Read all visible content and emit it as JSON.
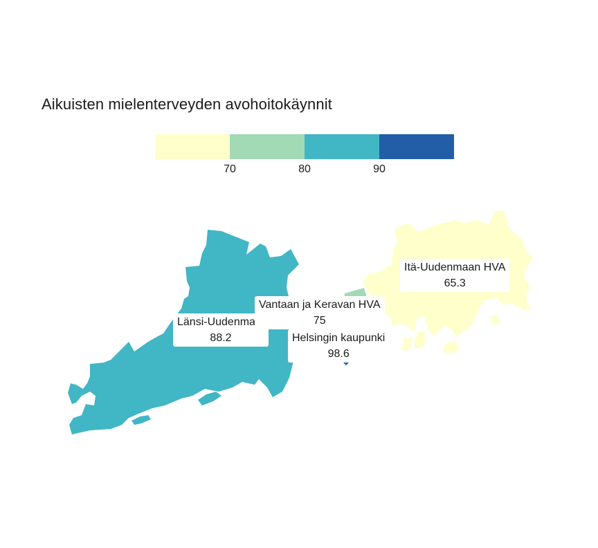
{
  "title": "Aikuisten mielenterveyden avohoitokäynnit",
  "legend": {
    "colors": [
      "#ffffcc",
      "#a1dab4",
      "#41b6c4",
      "#225ea8"
    ],
    "ticks": [
      "70",
      "80",
      "90"
    ]
  },
  "regions": [
    {
      "name": "Länsi-Uudenmaan HVA",
      "value": "88.2",
      "color": "#41b6c4"
    },
    {
      "name": "Vantaan ja Keravan HVA",
      "value": "75",
      "color": "#a1dab4"
    },
    {
      "name": "Helsingin kaupunki",
      "value": "98.6",
      "color": "#225ea8"
    },
    {
      "name": "Itä-Uudenmaan HVA",
      "value": "65.3",
      "color": "#ffffcc"
    }
  ]
}
